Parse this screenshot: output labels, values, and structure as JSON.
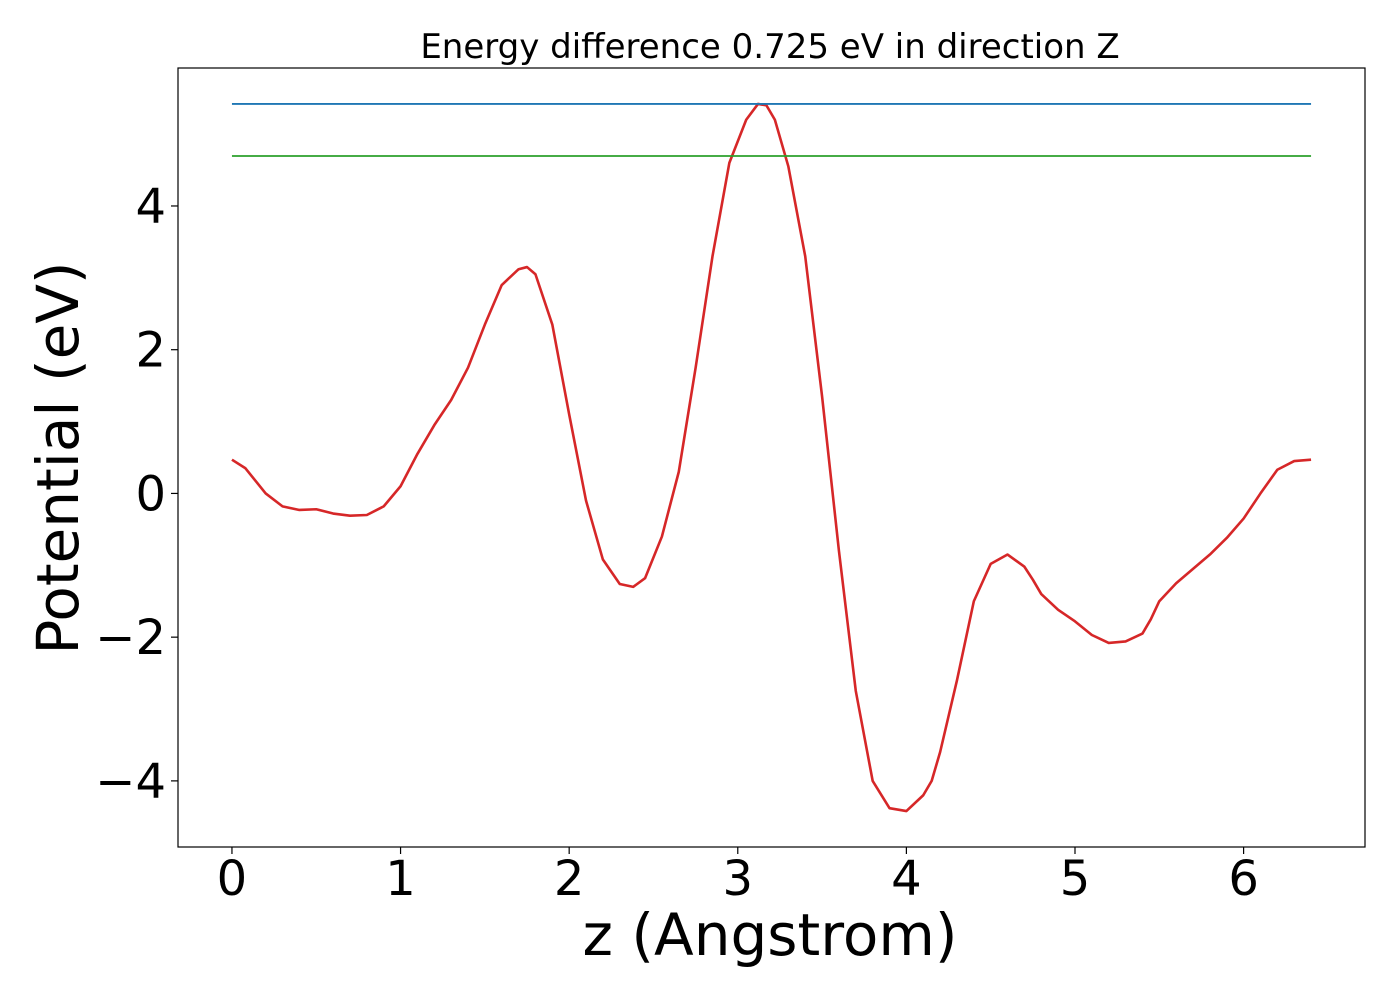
{
  "chart_data": {
    "type": "line",
    "title": "Energy difference 0.725 eV in direction Z",
    "xlabel": "z (Angstrom)",
    "ylabel": "Potential (eV)",
    "xlim": [
      -0.32,
      6.72
    ],
    "ylim": [
      -4.92,
      5.92
    ],
    "x_ticks": [
      0,
      1,
      2,
      3,
      4,
      5,
      6
    ],
    "x_tick_labels": [
      "0",
      "1",
      "2",
      "3",
      "4",
      "5",
      "6"
    ],
    "y_ticks": [
      -4,
      -2,
      0,
      2,
      4
    ],
    "y_tick_labels": [
      "−4",
      "−2",
      "0",
      "2",
      "4"
    ],
    "grid": false,
    "legend": "none",
    "series": [
      {
        "color": "#d62728",
        "x": [
          0.0,
          0.08,
          0.2,
          0.3,
          0.4,
          0.5,
          0.6,
          0.7,
          0.8,
          0.9,
          1.0,
          1.1,
          1.2,
          1.3,
          1.4,
          1.5,
          1.6,
          1.7,
          1.75,
          1.8,
          1.9,
          2.0,
          2.1,
          2.2,
          2.3,
          2.38,
          2.45,
          2.55,
          2.65,
          2.75,
          2.85,
          2.95,
          3.05,
          3.12,
          3.17,
          3.22,
          3.3,
          3.4,
          3.5,
          3.6,
          3.7,
          3.8,
          3.9,
          4.0,
          4.1,
          4.15,
          4.2,
          4.3,
          4.4,
          4.5,
          4.6,
          4.7,
          4.75,
          4.8,
          4.9,
          5.0,
          5.1,
          5.2,
          5.3,
          5.4,
          5.45,
          5.5,
          5.6,
          5.7,
          5.8,
          5.9,
          6.0,
          6.1,
          6.2,
          6.3,
          6.4
        ],
        "y": [
          0.47,
          0.35,
          0.0,
          -0.18,
          -0.23,
          -0.22,
          -0.28,
          -0.31,
          -0.3,
          -0.18,
          0.1,
          0.55,
          0.95,
          1.3,
          1.75,
          2.35,
          2.9,
          3.12,
          3.15,
          3.05,
          2.35,
          1.1,
          -0.1,
          -0.92,
          -1.26,
          -1.3,
          -1.18,
          -0.6,
          0.3,
          1.75,
          3.3,
          4.6,
          5.2,
          5.42,
          5.4,
          5.2,
          4.55,
          3.3,
          1.35,
          -0.8,
          -2.75,
          -4.0,
          -4.38,
          -4.42,
          -4.2,
          -4.0,
          -3.6,
          -2.6,
          -1.5,
          -0.98,
          -0.85,
          -1.02,
          -1.2,
          -1.4,
          -1.62,
          -1.78,
          -1.97,
          -2.08,
          -2.06,
          -1.95,
          -1.75,
          -1.5,
          -1.25,
          -1.05,
          -0.85,
          -0.62,
          -0.35,
          0.0,
          0.33,
          0.45,
          0.47
        ]
      },
      {
        "color": "#1f77b4",
        "x": [
          0.0,
          6.4
        ],
        "y": [
          5.42,
          5.42
        ]
      },
      {
        "color": "#2ca02c",
        "x": [
          0.0,
          6.4
        ],
        "y": [
          4.695,
          4.695
        ]
      }
    ]
  }
}
